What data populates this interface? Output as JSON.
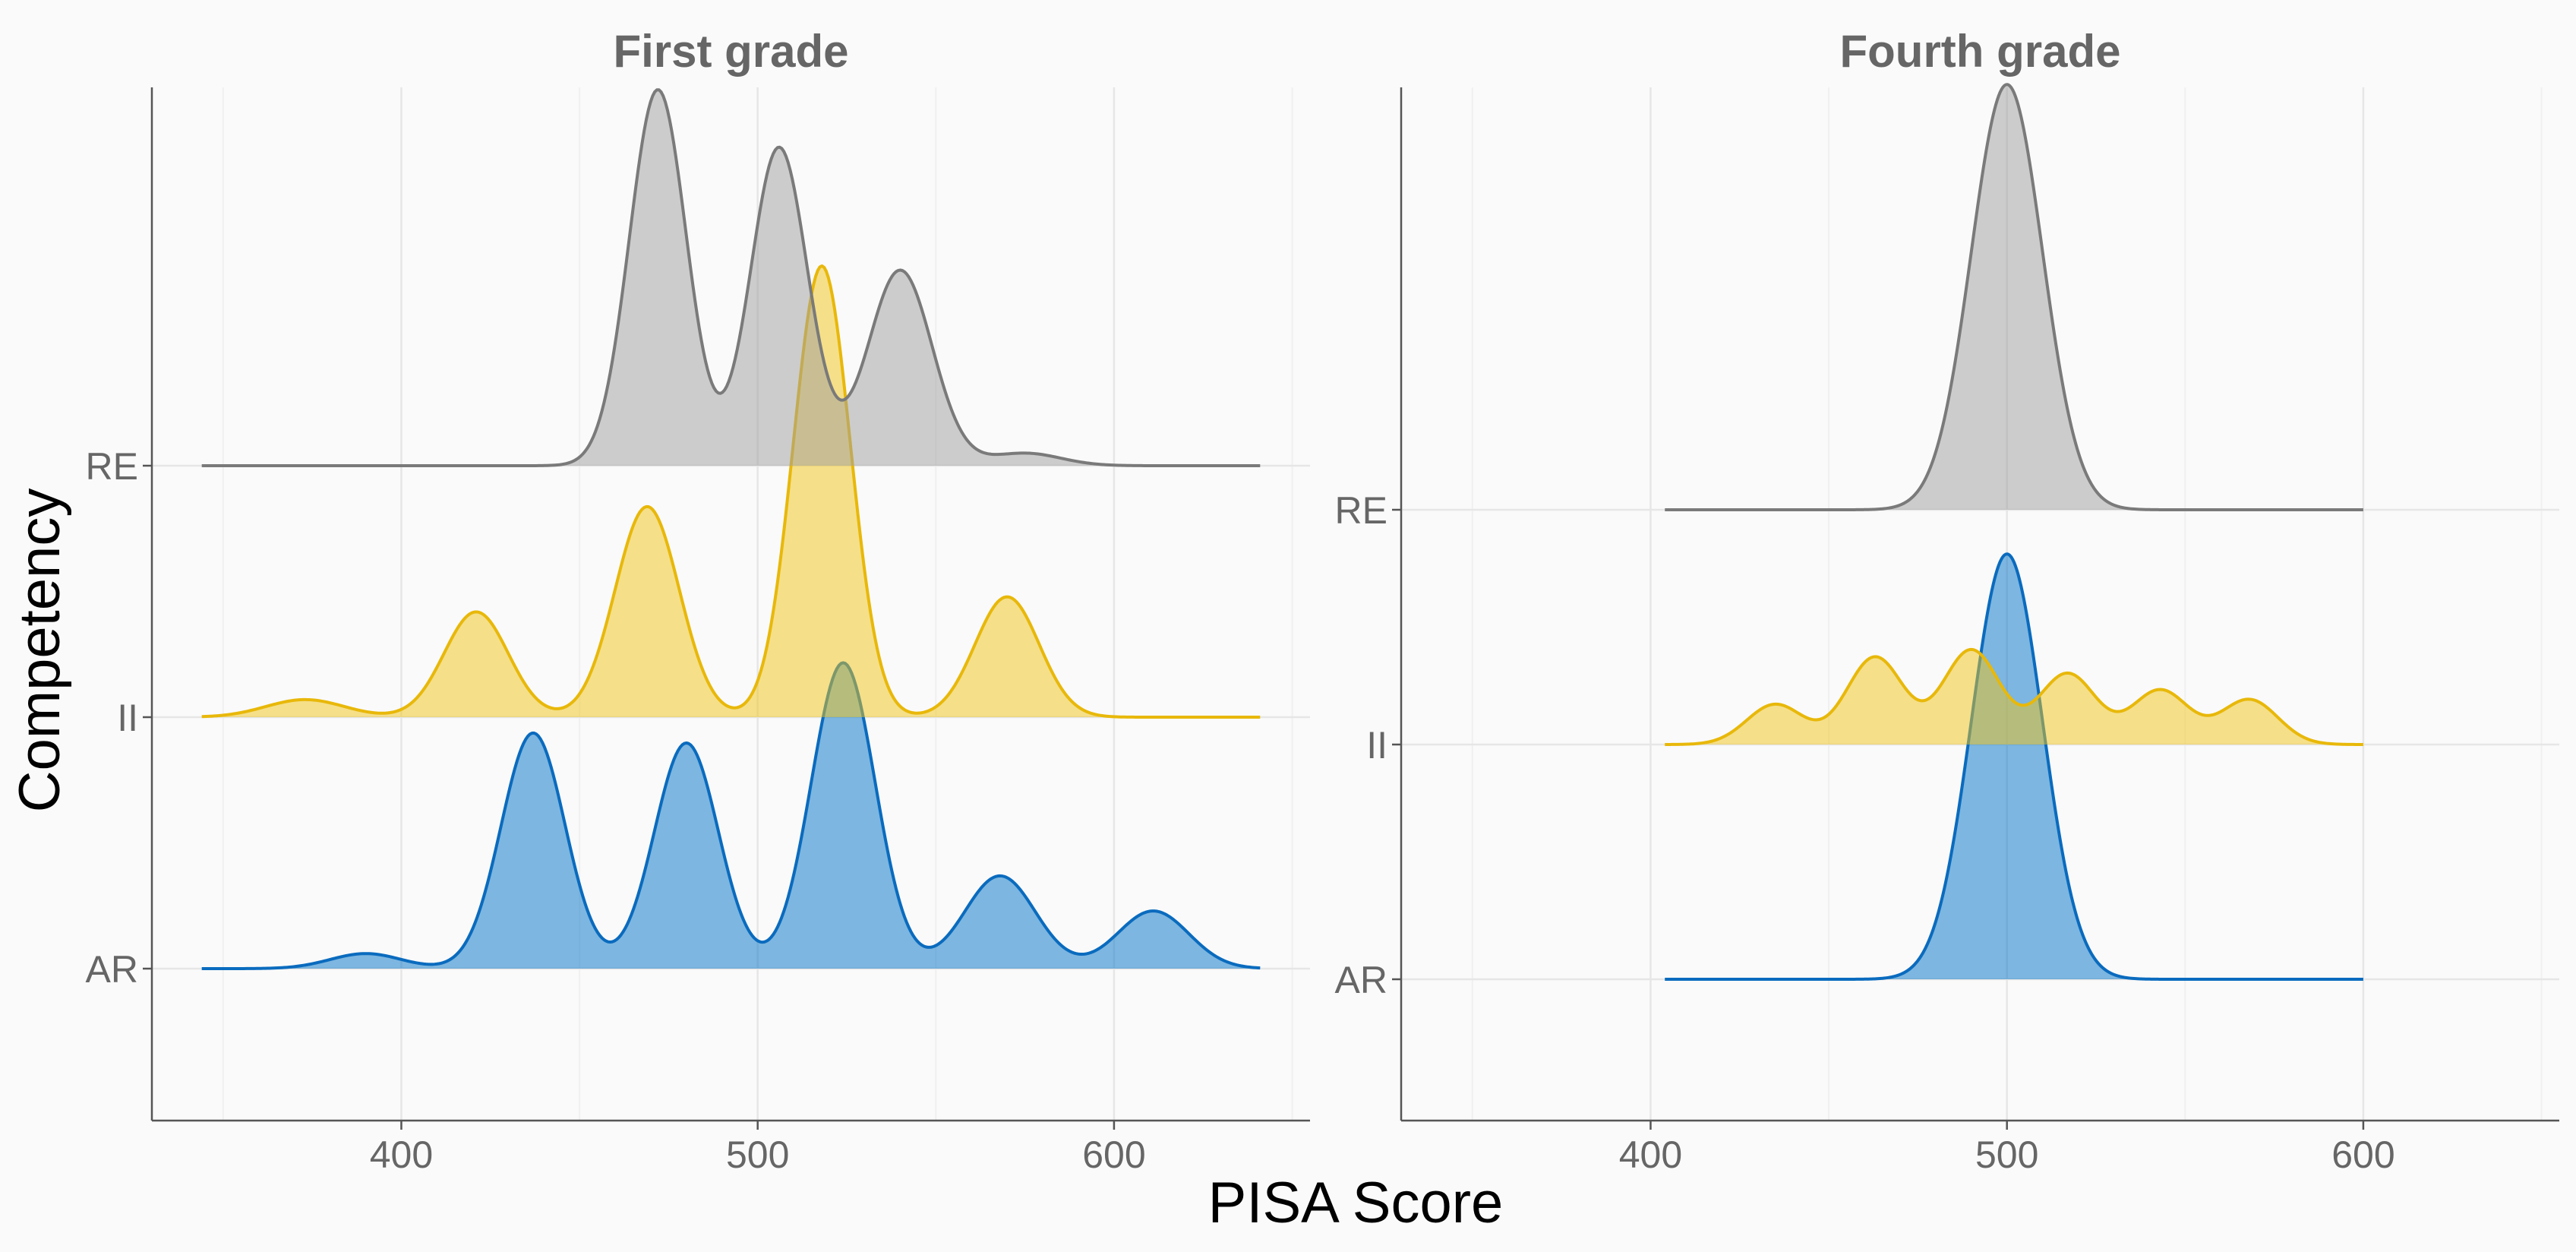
{
  "chart_data": {
    "type": "ridgeline",
    "xlabel": "PISA Score",
    "ylabel": "Competency",
    "categories": [
      "AR",
      "II",
      "RE"
    ],
    "xlim": [
      330,
      655
    ],
    "xticks": [
      400,
      500,
      600
    ],
    "grid": true,
    "colors": {
      "AR": {
        "fill": "#0072C6",
        "line": "#0A6BBE"
      },
      "II": {
        "fill": "#F0C418",
        "line": "#E8B80A"
      },
      "RE": {
        "fill": "#9E9E9E",
        "line": "#7A7A7A"
      }
    },
    "panels": [
      {
        "title": "First grade",
        "x_range": [
          344,
          641
        ],
        "series": [
          {
            "category": "AR",
            "peaks": [
              {
                "x": 390,
                "height": 0.06,
                "sd": 10
              },
              {
                "x": 437,
                "height": 0.94,
                "sd": 9
              },
              {
                "x": 480,
                "height": 0.9,
                "sd": 9
              },
              {
                "x": 524,
                "height": 1.22,
                "sd": 9
              },
              {
                "x": 568,
                "height": 0.37,
                "sd": 10
              },
              {
                "x": 611,
                "height": 0.23,
                "sd": 10
              }
            ]
          },
          {
            "category": "II",
            "peaks": [
              {
                "x": 373,
                "height": 0.07,
                "sd": 11
              },
              {
                "x": 421,
                "height": 0.42,
                "sd": 9
              },
              {
                "x": 469,
                "height": 0.84,
                "sd": 9
              },
              {
                "x": 518,
                "height": 1.8,
                "sd": 8
              },
              {
                "x": 570,
                "height": 0.48,
                "sd": 9
              }
            ]
          },
          {
            "category": "RE",
            "peaks": [
              {
                "x": 472,
                "height": 1.5,
                "sd": 8
              },
              {
                "x": 506,
                "height": 1.27,
                "sd": 8
              },
              {
                "x": 540,
                "height": 0.78,
                "sd": 9
              },
              {
                "x": 575,
                "height": 0.05,
                "sd": 10
              }
            ]
          }
        ]
      },
      {
        "title": "Fourth grade",
        "x_range": [
          404,
          600
        ],
        "series": [
          {
            "category": "AR",
            "peaks": [
              {
                "x": 500,
                "height": 1.8,
                "sd": 10
              }
            ]
          },
          {
            "category": "II",
            "peaks": [
              {
                "x": 435,
                "height": 0.17,
                "sd": 8
              },
              {
                "x": 463,
                "height": 0.37,
                "sd": 8
              },
              {
                "x": 490,
                "height": 0.4,
                "sd": 8
              },
              {
                "x": 517,
                "height": 0.3,
                "sd": 8
              },
              {
                "x": 543,
                "height": 0.23,
                "sd": 8
              },
              {
                "x": 568,
                "height": 0.19,
                "sd": 8
              }
            ]
          },
          {
            "category": "RE",
            "peaks": [
              {
                "x": 500,
                "height": 1.8,
                "sd": 10
              }
            ]
          }
        ]
      }
    ]
  }
}
